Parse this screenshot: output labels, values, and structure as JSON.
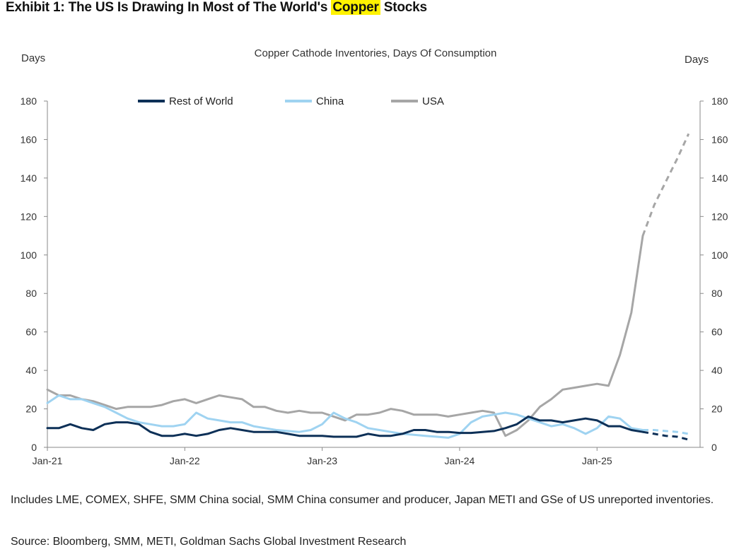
{
  "exhibit": {
    "title_prefix": "Exhibit 1: The US Is Drawing In Most of The World's ",
    "title_highlight": "Copper",
    "title_suffix": " Stocks"
  },
  "footer": {
    "note": "Includes LME, COMEX, SHFE, SMM China social, SMM China consumer and producer, Japan METI and GSe of US unreported inventories.",
    "source": "Source: Bloomberg, SMM, METI, Goldman Sachs Global Investment Research"
  },
  "chart_data": {
    "type": "line",
    "title": "Copper Cathode Inventories, Days Of Consumption",
    "ylabel_left": "Days",
    "ylabel_right": "Days",
    "ylim": [
      0,
      180
    ],
    "yticks": [
      0,
      20,
      40,
      60,
      80,
      100,
      120,
      140,
      160,
      180
    ],
    "xlim": [
      "2021-01",
      "2025-10"
    ],
    "xticks": [
      {
        "date": "2021-01",
        "label": "Jan-21"
      },
      {
        "date": "2022-01",
        "label": "Jan-22"
      },
      {
        "date": "2023-01",
        "label": "Jan-23"
      },
      {
        "date": "2024-01",
        "label": "Jan-24"
      },
      {
        "date": "2025-01",
        "label": "Jan-25"
      }
    ],
    "legend_position": "top",
    "series": [
      {
        "name": "Rest of World",
        "color": "#0d3057",
        "x": [
          "2021-01",
          "2021-02",
          "2021-03",
          "2021-04",
          "2021-05",
          "2021-06",
          "2021-07",
          "2021-08",
          "2021-09",
          "2021-10",
          "2021-11",
          "2021-12",
          "2022-01",
          "2022-02",
          "2022-03",
          "2022-04",
          "2022-05",
          "2022-06",
          "2022-07",
          "2022-08",
          "2022-09",
          "2022-10",
          "2022-11",
          "2022-12",
          "2023-01",
          "2023-02",
          "2023-03",
          "2023-04",
          "2023-05",
          "2023-06",
          "2023-07",
          "2023-08",
          "2023-09",
          "2023-10",
          "2023-11",
          "2023-12",
          "2024-01",
          "2024-02",
          "2024-03",
          "2024-04",
          "2024-05",
          "2024-06",
          "2024-07",
          "2024-08",
          "2024-09",
          "2024-10",
          "2024-11",
          "2024-12",
          "2025-01",
          "2025-02",
          "2025-03",
          "2025-04",
          "2025-05"
        ],
        "values": [
          10,
          10,
          12,
          10,
          9,
          12,
          13,
          13,
          12,
          8,
          6,
          6,
          7,
          6,
          7,
          9,
          10,
          9,
          8,
          8,
          8,
          7,
          6,
          6,
          6,
          5.5,
          5.5,
          5.5,
          7,
          6,
          6,
          7,
          9,
          9,
          8,
          8,
          7.5,
          7.5,
          8,
          8.5,
          10,
          12,
          16,
          14,
          14,
          13,
          14,
          15,
          14,
          11,
          11,
          9,
          8
        ],
        "proj_x": [
          "2025-05",
          "2025-06",
          "2025-07",
          "2025-08",
          "2025-09"
        ],
        "proj_values": [
          8,
          7,
          6,
          5.5,
          4
        ]
      },
      {
        "name": "China",
        "color": "#9fd3f1",
        "x": [
          "2021-01",
          "2021-02",
          "2021-03",
          "2021-04",
          "2021-05",
          "2021-06",
          "2021-07",
          "2021-08",
          "2021-09",
          "2021-10",
          "2021-11",
          "2021-12",
          "2022-01",
          "2022-02",
          "2022-03",
          "2022-04",
          "2022-05",
          "2022-06",
          "2022-07",
          "2022-08",
          "2022-09",
          "2022-10",
          "2022-11",
          "2022-12",
          "2023-01",
          "2023-02",
          "2023-03",
          "2023-04",
          "2023-05",
          "2023-06",
          "2023-07",
          "2023-08",
          "2023-09",
          "2023-10",
          "2023-11",
          "2023-12",
          "2024-01",
          "2024-02",
          "2024-03",
          "2024-04",
          "2024-05",
          "2024-06",
          "2024-07",
          "2024-08",
          "2024-09",
          "2024-10",
          "2024-11",
          "2024-12",
          "2025-01",
          "2025-02",
          "2025-03",
          "2025-04",
          "2025-05"
        ],
        "values": [
          23,
          27,
          25,
          25,
          23,
          21,
          18,
          15,
          13,
          12,
          11,
          11,
          12,
          18,
          15,
          14,
          13,
          13,
          11,
          10,
          9,
          8.5,
          8,
          9,
          12,
          18,
          15,
          13,
          10,
          9,
          8,
          7,
          6.5,
          6,
          5.5,
          5,
          7,
          13,
          16,
          17,
          18,
          17,
          15,
          13,
          11,
          12,
          10,
          7,
          10,
          16,
          15,
          10,
          9
        ],
        "proj_x": [
          "2025-05",
          "2025-06",
          "2025-07",
          "2025-08",
          "2025-09"
        ],
        "proj_values": [
          9,
          9,
          8.5,
          8,
          7
        ]
      },
      {
        "name": "USA",
        "color": "#a6a6a6",
        "x": [
          "2021-01",
          "2021-02",
          "2021-03",
          "2021-04",
          "2021-05",
          "2021-06",
          "2021-07",
          "2021-08",
          "2021-09",
          "2021-10",
          "2021-11",
          "2021-12",
          "2022-01",
          "2022-02",
          "2022-03",
          "2022-04",
          "2022-05",
          "2022-06",
          "2022-07",
          "2022-08",
          "2022-09",
          "2022-10",
          "2022-11",
          "2022-12",
          "2023-01",
          "2023-02",
          "2023-03",
          "2023-04",
          "2023-05",
          "2023-06",
          "2023-07",
          "2023-08",
          "2023-09",
          "2023-10",
          "2023-11",
          "2023-12",
          "2024-01",
          "2024-02",
          "2024-03",
          "2024-04",
          "2024-05",
          "2024-06",
          "2024-07",
          "2024-08",
          "2024-09",
          "2024-10",
          "2024-11",
          "2024-12",
          "2025-01",
          "2025-02",
          "2025-03",
          "2025-04",
          "2025-05"
        ],
        "values": [
          30,
          27,
          27,
          25,
          24,
          22,
          20,
          21,
          21,
          21,
          22,
          24,
          25,
          23,
          25,
          27,
          26,
          25,
          21,
          21,
          19,
          18,
          19,
          18,
          18,
          16,
          14,
          17,
          17,
          18,
          20,
          19,
          17,
          17,
          17,
          16,
          17,
          18,
          19,
          18,
          6,
          9,
          14,
          21,
          25,
          30,
          31,
          32,
          33,
          32,
          48,
          70,
          110
        ],
        "proj_x": [
          "2025-05",
          "2025-06",
          "2025-07",
          "2025-08",
          "2025-09"
        ],
        "proj_values": [
          110,
          126,
          138,
          150,
          163
        ]
      }
    ]
  }
}
